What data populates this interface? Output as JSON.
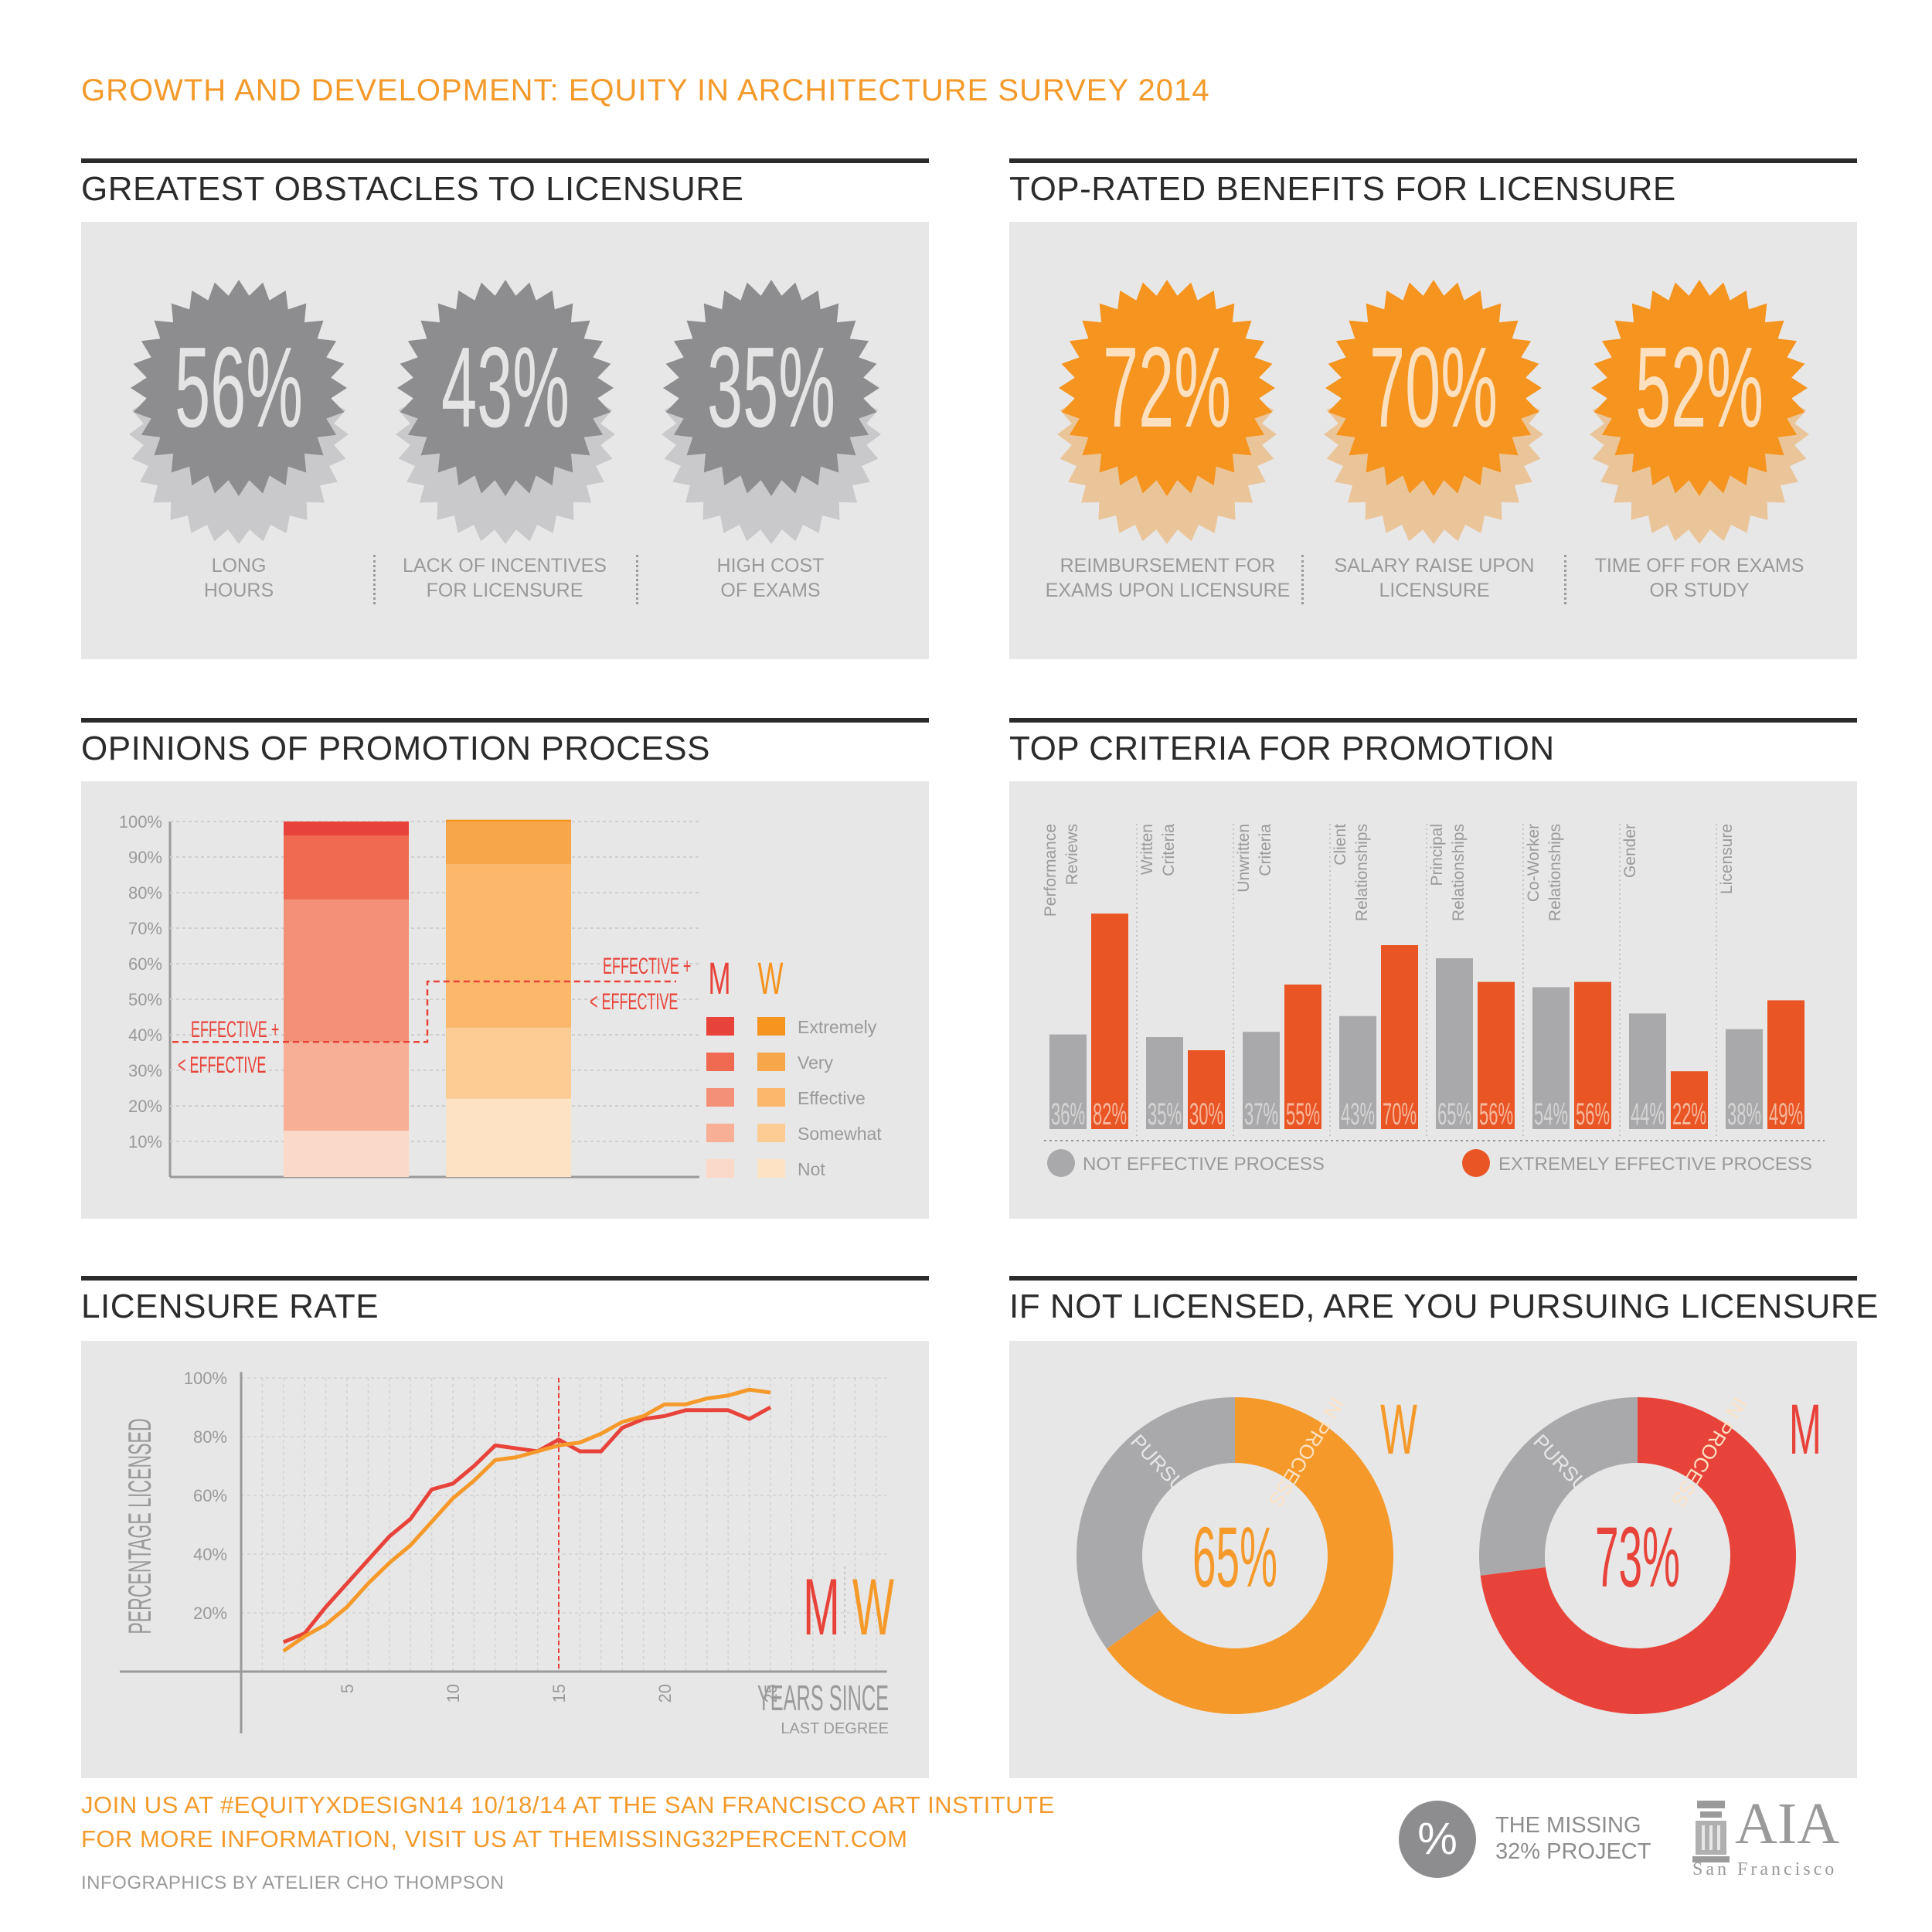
{
  "title": "GROWTH AND DEVELOPMENT: EQUITY IN ARCHITECTURE SURVEY 2014",
  "sections": {
    "obstacles": "GREATEST OBSTACLES TO LICENSURE",
    "benefits": "TOP-RATED BENEFITS FOR LICENSURE",
    "opinions": "OPINIONS OF PROMOTION PROCESS",
    "criteria": "TOP CRITERIA FOR PROMOTION",
    "rate": "LICENSURE RATE",
    "pursuing": "IF NOT LICENSED, ARE YOU PURSUING LICENSURE"
  },
  "colors": {
    "orange_text": "#f39a2a",
    "gray_badge": "#8d8d8f",
    "orange_badge": "#f5941f",
    "men_red": "#e8433a",
    "women_orange": "#f59a2a",
    "criteria_orange": "#e95524",
    "criteria_gray": "#a9a9ab"
  },
  "chart_data": [
    {
      "type": "badges",
      "title": "GREATEST OBSTACLES TO LICENSURE",
      "items": [
        {
          "value": "56%",
          "label1": "LONG",
          "label2": "HOURS"
        },
        {
          "value": "43%",
          "label1": "LACK OF INCENTIVES",
          "label2": "FOR LICENSURE"
        },
        {
          "value": "35%",
          "label1": "HIGH COST",
          "label2": "OF EXAMS"
        }
      ]
    },
    {
      "type": "badges",
      "title": "TOP-RATED BENEFITS FOR LICENSURE",
      "items": [
        {
          "value": "72%",
          "label1": "REIMBURSEMENT FOR",
          "label2": "EXAMS UPON LICENSURE"
        },
        {
          "value": "70%",
          "label1": "SALARY RAISE UPON",
          "label2": "LICENSURE"
        },
        {
          "value": "52%",
          "label1": "TIME OFF FOR EXAMS",
          "label2": "OR STUDY"
        }
      ]
    },
    {
      "type": "bar",
      "stacked": true,
      "title": "OPINIONS OF PROMOTION PROCESS",
      "ylim": [
        0,
        100
      ],
      "yticks": [
        "10%",
        "20%",
        "30%",
        "40%",
        "50%",
        "60%",
        "70%",
        "80%",
        "90%",
        "100%"
      ],
      "categories": [
        "M",
        "W"
      ],
      "series": [
        {
          "name": "Not",
          "values": [
            13,
            22
          ]
        },
        {
          "name": "Somewhat",
          "values": [
            25,
            20
          ]
        },
        {
          "name": "Effective",
          "values": [
            40,
            46
          ]
        },
        {
          "name": "Very",
          "values": [
            18,
            12
          ]
        },
        {
          "name": "Extremely",
          "values": [
            4,
            0.5
          ]
        }
      ],
      "legend_headers": [
        "M",
        "W"
      ],
      "annotation_top": "EFFECTIVE +",
      "annotation_bottom": "< EFFECTIVE",
      "threshold_m": 38,
      "threshold_w": 55
    },
    {
      "type": "bar",
      "title": "TOP CRITERIA FOR PROMOTION",
      "categories": [
        "Performance Reviews",
        "Written Criteria",
        "Unwritten Criteria",
        "Client Relationships",
        "Principal Relationships",
        "Co-Worker Relationships",
        "Gender",
        "Licensure"
      ],
      "category_lines": [
        [
          "Performance",
          "Reviews"
        ],
        [
          "Written",
          "Criteria"
        ],
        [
          "Unwritten",
          "Criteria"
        ],
        [
          "Client",
          "Relationships"
        ],
        [
          "Principal",
          "Relationships"
        ],
        [
          "Co-Worker",
          "Relationships"
        ],
        [
          "Gender"
        ],
        [
          "Licensure"
        ]
      ],
      "series": [
        {
          "name": "NOT EFFECTIVE PROCESS",
          "values": [
            36,
            35,
            37,
            43,
            65,
            54,
            44,
            38
          ]
        },
        {
          "name": "EXTREMELY EFFECTIVE PROCESS",
          "values": [
            82,
            30,
            55,
            70,
            56,
            56,
            22,
            49
          ]
        }
      ],
      "labels_gray": [
        "36%",
        "35%",
        "37%",
        "43%",
        "65%",
        "54%",
        "44%",
        "38%"
      ],
      "labels_orange": [
        "82%",
        "30%",
        "55%",
        "70%",
        "56%",
        "56%",
        "22%",
        "49%"
      ]
    },
    {
      "type": "line",
      "title": "LICENSURE RATE",
      "ylabel": "PERCENTAGE LICENSED",
      "xlabel1": "YEARS SINCE",
      "xlabel2": "LAST DEGREE",
      "ylim": [
        0,
        100
      ],
      "xlim": [
        0,
        31
      ],
      "xticks": [
        "5",
        "10",
        "15",
        "20",
        "25"
      ],
      "yticks": [
        "20%",
        "40%",
        "60%",
        "80%",
        "100%"
      ],
      "marker_x": 15,
      "x": [
        2,
        3,
        4,
        5,
        6,
        7,
        8,
        9,
        10,
        11,
        12,
        13,
        14,
        15,
        16,
        17,
        18,
        19,
        20,
        21,
        22,
        23,
        24,
        25
      ],
      "series": [
        {
          "name": "M",
          "values": [
            10,
            13,
            22,
            30,
            38,
            46,
            52,
            62,
            64,
            70,
            77,
            76,
            75,
            79,
            75,
            75,
            83,
            86,
            87,
            89,
            89,
            89,
            86,
            90
          ]
        },
        {
          "name": "W",
          "values": [
            7,
            12,
            16,
            22,
            30,
            37,
            43,
            51,
            59,
            65,
            72,
            73,
            75,
            77,
            78,
            81,
            85,
            87,
            91,
            91,
            93,
            94,
            96,
            95
          ]
        }
      ],
      "legend": [
        "M",
        "W"
      ]
    },
    {
      "type": "pie",
      "title": "IF NOT LICENSED, ARE YOU PURSUING LICENSURE",
      "donuts": [
        {
          "name": "W",
          "center_label": "65%",
          "in_process": 65,
          "not_pursuing": 35,
          "label_in": "IN PROCESS",
          "label_not": "NOT PURSUING"
        },
        {
          "name": "M",
          "center_label": "73%",
          "in_process": 73,
          "not_pursuing": 27,
          "label_in": "IN PROCESS",
          "label_not": "NOT PURSUING"
        }
      ]
    }
  ],
  "footer": {
    "line1": "JOIN US AT #EQUITYXDESIGN14 10/18/14 AT THE SAN FRANCISCO ART INSTITUTE",
    "line2": "FOR MORE INFORMATION, VISIT US AT THEMISSING32PERCENT.COM",
    "credit": "INFOGRAPHICS BY ATELIER CHO THOMPSON",
    "logo1_symbol": "%",
    "logo1_line1": "THE MISSING",
    "logo1_line2": "32% PROJECT",
    "logo2_main": "AIA",
    "logo2_sub": "San Francisco"
  }
}
